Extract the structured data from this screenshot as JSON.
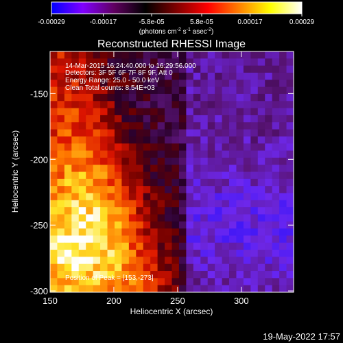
{
  "chart_data": {
    "type": "heatmap",
    "title": "Reconstructed RHESSI Image",
    "xlabel": "Heliocentric X (arcsec)",
    "ylabel": "Heliocentric Y (arcsec)",
    "xlim": [
      150,
      341
    ],
    "ylim": [
      -301,
      -118
    ],
    "xticks": [
      150,
      200,
      250,
      300
    ],
    "yticks": [
      -150,
      -200,
      -250,
      -300
    ],
    "colorbar": {
      "ticks": [
        "-0.00029",
        "-0.00017",
        "-5.8e-05",
        "5.8e-05",
        "0.00017",
        "0.00029"
      ],
      "tick_values": [
        -0.00029,
        -0.00017,
        -5.8e-05,
        5.8e-05,
        0.00017,
        0.00029
      ],
      "range": [
        -0.00029,
        0.00029
      ],
      "units_main": "(photons cm",
      "units_exp1": "-2",
      "units_mid": " s",
      "units_exp2": "-1",
      "units_end": " asec",
      "units_exp3": "-2",
      "units_close": ")",
      "colors": [
        "#0000ff",
        "#8000ff",
        "#600060",
        "#000000",
        "#800000",
        "#ff0000",
        "#ff8000",
        "#ffff00",
        "#ffffff"
      ]
    },
    "annotations": [
      "14-Mar-2015 16:24:40.000 to 16:29:56.000",
      "Detectors: 3F 5F 6F 7F 8F 9F, Att 0",
      "Energy Range: 25.0 - 50.0 keV",
      "Clean    Total counts: 8.54E+03"
    ],
    "peak_label": "Position of Peak = [153,-273]",
    "peak": [
      153,
      -273
    ]
  },
  "footer_date": "19-May-2022 17:57"
}
